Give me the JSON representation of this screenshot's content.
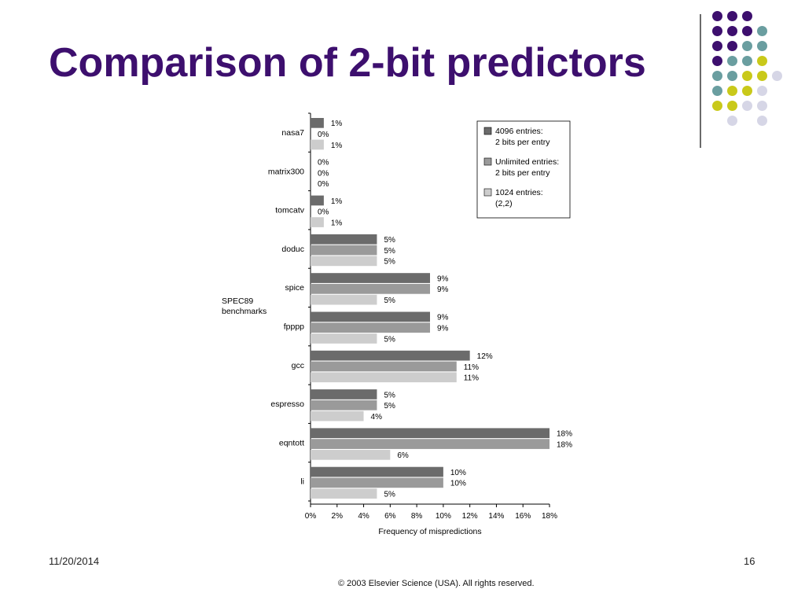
{
  "slide": {
    "title": "Comparison of 2-bit predictors",
    "date": "11/20/2014",
    "page_number": "16",
    "copyright": "© 2003 Elsevier Science (USA). All rights reserved."
  },
  "decoration": {
    "dot_rows": [
      [
        "#3d0f6e",
        "#3d0f6e",
        "#3d0f6e",
        null,
        null
      ],
      [
        "#3d0f6e",
        "#3d0f6e",
        "#3d0f6e",
        "#6a9ea0",
        null
      ],
      [
        "#3d0f6e",
        "#3d0f6e",
        "#6a9ea0",
        "#6a9ea0",
        null
      ],
      [
        "#3d0f6e",
        "#6a9ea0",
        "#6a9ea0",
        "#c9c91a",
        null
      ],
      [
        "#6a9ea0",
        "#6a9ea0",
        "#c9c91a",
        "#c9c91a",
        "#d6d6e6"
      ],
      [
        "#6a9ea0",
        "#c9c91a",
        "#c9c91a",
        "#d6d6e6",
        null
      ],
      [
        "#c9c91a",
        "#c9c91a",
        "#d6d6e6",
        "#d6d6e6",
        null
      ],
      [
        null,
        "#d6d6e6",
        null,
        "#d6d6e6",
        null
      ]
    ]
  },
  "chart_data": {
    "type": "bar",
    "orientation": "horizontal",
    "group_axis_label": "SPEC89\nbenchmarks",
    "xlabel": "Frequency of mispredictions",
    "xlim": [
      0,
      18
    ],
    "xticks": [
      "0%",
      "2%",
      "4%",
      "6%",
      "8%",
      "10%",
      "12%",
      "14%",
      "16%",
      "18%"
    ],
    "categories": [
      "nasa7",
      "matrix300",
      "tomcatv",
      "doduc",
      "spice",
      "fpppp",
      "gcc",
      "espresso",
      "eqntott",
      "li"
    ],
    "series": [
      {
        "name": "4096 entries: 2 bits per entry",
        "legend_lines": [
          "4096 entries:",
          "2 bits per entry"
        ],
        "color": "#6b6b6b",
        "values": [
          1,
          0,
          1,
          5,
          9,
          9,
          12,
          5,
          18,
          10
        ]
      },
      {
        "name": "Unlimited entries: 2 bits per entry",
        "legend_lines": [
          "Unlimited entries:",
          "2 bits per entry"
        ],
        "color": "#9a9a9a",
        "values": [
          0,
          0,
          0,
          5,
          9,
          9,
          11,
          5,
          18,
          10
        ]
      },
      {
        "name": "1024 entries: (2,2)",
        "legend_lines": [
          "1024 entries:",
          "(2,2)"
        ],
        "color": "#cdcdcd",
        "values": [
          1,
          0,
          1,
          5,
          5,
          5,
          11,
          4,
          6,
          5
        ]
      }
    ],
    "legend_position": "top-right",
    "grid": false
  }
}
